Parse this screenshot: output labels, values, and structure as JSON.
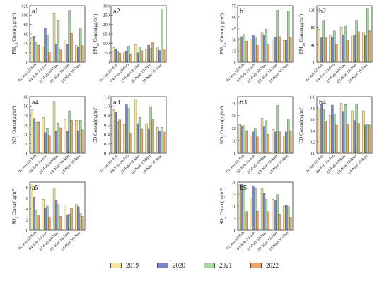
{
  "colors": {
    "2019": "#f7e79e",
    "2020": "#7b86c4",
    "2021": "#a8d6a1",
    "2022": "#f0a366"
  },
  "legend": [
    "2019",
    "2020",
    "2021",
    "2022"
  ],
  "chart_data": [
    {
      "type": "bar",
      "panel": "a1",
      "ylabel": "PM2.5 Concn(μg/m³)",
      "ylim": [
        0,
        120
      ],
      "yticks": [
        0,
        20,
        40,
        60,
        80,
        100,
        120
      ],
      "categories": [
        "01-Jan-03-Feb",
        "04-Feb-20-Feb",
        "21-Feb-03-Mar",
        "03-Mar-13-Mar",
        "14-Mar-31-Mar"
      ],
      "series": [
        {
          "name": "2019",
          "values": [
            52,
            32,
            103,
            47,
            35
          ]
        },
        {
          "name": "2020",
          "values": [
            55,
            73,
            38,
            37,
            32
          ]
        },
        {
          "name": "2021",
          "values": [
            42,
            58,
            88,
            110,
            71
          ]
        },
        {
          "name": "2022",
          "values": [
            36,
            22,
            26,
            61,
            35
          ]
        }
      ]
    },
    {
      "type": "bar",
      "panel": "a2",
      "ylabel": "PM10 Concn(μg/m³)",
      "ylim": [
        0,
        300
      ],
      "yticks": [
        0,
        50,
        100,
        150,
        200,
        250,
        300
      ],
      "categories": [
        "01-Jan-03-Feb",
        "04-Feb-20-Feb",
        "21-Feb-03-Mar",
        "03-Mar-13-Mar",
        "14-Mar-31-Mar"
      ],
      "series": [
        {
          "name": "2019",
          "values": [
            82,
            52,
            93,
            68,
            82
          ]
        },
        {
          "name": "2020",
          "values": [
            68,
            60,
            50,
            90,
            62
          ]
        },
        {
          "name": "2021",
          "values": [
            58,
            85,
            80,
            72,
            278
          ]
        },
        {
          "name": "2022",
          "values": [
            48,
            40,
            60,
            105,
            65
          ]
        }
      ]
    },
    {
      "type": "bar",
      "panel": "a4",
      "ylabel": "NO2 Concn(μg/m³)",
      "ylim": [
        0,
        60
      ],
      "yticks": [
        0,
        10,
        20,
        30,
        40,
        50,
        60
      ],
      "categories": [
        "01-Jan-03-Feb",
        "04-Feb-20-Feb",
        "21-Feb-03-Mar",
        "03-Mar-13-Mar",
        "14-Mar-31-Mar"
      ],
      "series": [
        {
          "name": "2019",
          "values": [
            46,
            38,
            55,
            36,
            35
          ]
        },
        {
          "name": "2020",
          "values": [
            37,
            22,
            23,
            23,
            23
          ]
        },
        {
          "name": "2021",
          "values": [
            33,
            26,
            32,
            45,
            35
          ]
        },
        {
          "name": "2022",
          "values": [
            33,
            19,
            27,
            35,
            25
          ]
        }
      ]
    },
    {
      "type": "bar",
      "panel": "a3",
      "ylabel": "CO Concn(mg/m³)",
      "ylim": [
        0,
        1.2
      ],
      "yticks": [
        0,
        0.2,
        0.4,
        0.6,
        0.8,
        1.0,
        1.2
      ],
      "categories": [
        "01-Jan-03-Feb",
        "04-Feb-20-Feb",
        "21-Feb-03-Mar",
        "03-Mar-13-Mar",
        "14-Mar-31-Mar"
      ],
      "series": [
        {
          "name": "2019",
          "values": [
            0.92,
            0.61,
            1.14,
            0.63,
            0.55
          ]
        },
        {
          "name": "2020",
          "values": [
            0.88,
            1.04,
            0.63,
            0.51,
            0.47
          ]
        },
        {
          "name": "2021",
          "values": [
            0.66,
            0.95,
            0.76,
            0.99,
            0.55
          ]
        },
        {
          "name": "2022",
          "values": [
            0.71,
            0.43,
            0.51,
            0.73,
            0.45
          ]
        }
      ]
    },
    {
      "type": "bar",
      "panel": "a5",
      "ylabel": "SO2 Concn(μg/m³)",
      "ylim": [
        0,
        9
      ],
      "yticks": [
        0,
        2,
        4,
        6,
        8
      ],
      "categories": [
        "01-Jan-03-Feb",
        "04-Feb-20-Feb",
        "21-Feb-03-Mar",
        "03-Mar-13-Mar",
        "14-Mar-31-Mar"
      ],
      "series": [
        {
          "name": "2019",
          "values": [
            8.7,
            5.8,
            7.9,
            4.7,
            4.8
          ]
        },
        {
          "name": "2020",
          "values": [
            6.2,
            4.2,
            5.6,
            2.9,
            4.4
          ]
        },
        {
          "name": "2021",
          "values": [
            3.7,
            4.5,
            4.8,
            3.0,
            3.1
          ]
        },
        {
          "name": "2022",
          "values": [
            2.8,
            2.5,
            2.6,
            4.1,
            2.6
          ]
        }
      ]
    },
    {
      "type": "bar",
      "panel": "b1",
      "ylabel": "PM2.5 Concn(μg/m³)",
      "ylim": [
        0,
        75
      ],
      "yticks": [
        0,
        15,
        30,
        45,
        60,
        75
      ],
      "categories": [
        "01-Jan-03-Feb",
        "04-Feb-20-Feb",
        "21-Feb-03-Mar",
        "03-Mar-13-Mar",
        "14-Mar-31-Mar"
      ],
      "series": [
        {
          "name": "2019",
          "values": [
            33,
            30,
            40,
            30,
            29
          ]
        },
        {
          "name": "2020",
          "values": [
            34,
            36,
            36,
            33,
            29
          ]
        },
        {
          "name": "2021",
          "values": [
            37,
            33,
            44,
            69,
            68
          ]
        },
        {
          "name": "2022",
          "values": [
            28,
            22,
            23,
            34,
            33
          ]
        }
      ]
    },
    {
      "type": "bar",
      "panel": "b2",
      "ylabel": "PM10 Concn(μg/m³)",
      "ylim": [
        0,
        130
      ],
      "yticks": [
        0,
        40,
        80,
        120
      ],
      "categories": [
        "01-Jan-03-Feb",
        "04-Feb-20-Feb",
        "21-Feb-03-Mar",
        "03-Mar-13-Mar",
        "14-Mar-31-Mar"
      ],
      "series": [
        {
          "name": "2019",
          "values": [
            76,
            62,
            81,
            62,
            69
          ]
        },
        {
          "name": "2020",
          "values": [
            56,
            58,
            63,
            63,
            62
          ]
        },
        {
          "name": "2021",
          "values": [
            95,
            72,
            82,
            97,
            124
          ]
        },
        {
          "name": "2022",
          "values": [
            56,
            40,
            51,
            70,
            72
          ]
        }
      ]
    },
    {
      "type": "bar",
      "panel": "b3",
      "ylabel": "NO2 Concn(μg/m³)",
      "ylim": [
        0,
        45
      ],
      "yticks": [
        0,
        10,
        20,
        30,
        40
      ],
      "categories": [
        "01-Jan-03-Feb",
        "04-Feb-20-Feb",
        "21-Feb-03-Mar",
        "03-Mar-13-Mar",
        "14-Mar-31-Mar"
      ],
      "series": [
        {
          "name": "2019",
          "values": [
            23,
            14,
            28,
            19,
            13
          ]
        },
        {
          "name": "2020",
          "values": [
            22,
            17,
            21,
            17,
            17
          ]
        },
        {
          "name": "2021",
          "values": [
            22,
            20,
            26,
            38,
            27
          ]
        },
        {
          "name": "2022",
          "values": [
            18,
            13,
            15,
            17,
            18
          ]
        }
      ]
    },
    {
      "type": "bar",
      "panel": "b4",
      "ylabel": "CO Concn(mg/m³)",
      "ylim": [
        0,
        1.0
      ],
      "yticks": [
        0,
        0.2,
        0.4,
        0.6,
        0.8,
        1.0
      ],
      "categories": [
        "01-Jan-03-Feb",
        "04-Feb-20-Feb",
        "21-Feb-03-Mar",
        "03-Mar-13-Mar",
        "14-Mar-31-Mar"
      ],
      "series": [
        {
          "name": "2019",
          "values": [
            0.78,
            0.67,
            0.88,
            0.75,
            0.75
          ]
        },
        {
          "name": "2020",
          "values": [
            0.86,
            0.85,
            0.74,
            0.58,
            0.5
          ]
        },
        {
          "name": "2021",
          "values": [
            0.78,
            0.69,
            0.86,
            0.87,
            0.52
          ]
        },
        {
          "name": "2022",
          "values": [
            0.57,
            0.5,
            0.52,
            0.53,
            0.5
          ]
        }
      ]
    },
    {
      "type": "bar",
      "panel": "b5",
      "ylabel": "SO2 Concn(μg/m³)",
      "ylim": [
        0,
        20
      ],
      "yticks": [
        0,
        5,
        10,
        15,
        20
      ],
      "categories": [
        "01-Jan-03-Feb",
        "04-Feb-20-Feb",
        "21-Feb-03-Mar",
        "03-Mar-13-Mar",
        "14-Mar-31-Mar"
      ],
      "series": [
        {
          "name": "2019",
          "values": [
            19,
            13.5,
            17.2,
            12.8,
            10
          ]
        },
        {
          "name": "2020",
          "values": [
            19.2,
            18.5,
            15.2,
            12.5,
            10.2
          ]
        },
        {
          "name": "2021",
          "values": [
            18.7,
            17.3,
            12.8,
            14.8,
            9.8
          ]
        },
        {
          "name": "2022",
          "values": [
            7.7,
            7.9,
            7.7,
            6.7,
            5.3
          ]
        }
      ]
    }
  ]
}
